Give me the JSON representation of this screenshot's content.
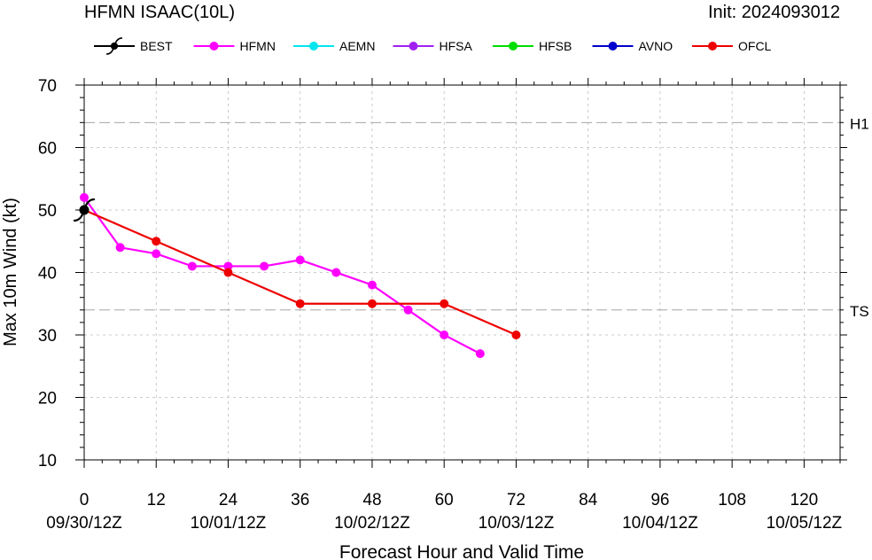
{
  "header": {
    "title": "HFMN ISAAC(10L)",
    "init": "Init: 2024093012"
  },
  "legend": [
    {
      "name": "BEST",
      "color": "#000000",
      "marker": "hurricane"
    },
    {
      "name": "HFMN",
      "color": "#ff00ff",
      "marker": "circle"
    },
    {
      "name": "AEMN",
      "color": "#00e5ee",
      "marker": "circle"
    },
    {
      "name": "HFSA",
      "color": "#a020f0",
      "marker": "circle"
    },
    {
      "name": "HFSB",
      "color": "#00dd00",
      "marker": "circle"
    },
    {
      "name": "AVNO",
      "color": "#0000cc",
      "marker": "circle"
    },
    {
      "name": "OFCL",
      "color": "#ee0000",
      "marker": "circle"
    }
  ],
  "chart_data": {
    "type": "line",
    "xlabel": "Forecast Hour and Valid Time",
    "ylabel": "Max 10m Wind (kt)",
    "xlim": [
      0,
      126
    ],
    "ylim": [
      10,
      70
    ],
    "x_ticks": [
      0,
      12,
      24,
      36,
      48,
      60,
      72,
      84,
      96,
      108,
      120
    ],
    "y_ticks": [
      10,
      20,
      30,
      40,
      50,
      60,
      70
    ],
    "valid_times": [
      {
        "hour": 0,
        "label": "09/30/12Z"
      },
      {
        "hour": 24,
        "label": "10/01/12Z"
      },
      {
        "hour": 48,
        "label": "10/02/12Z"
      },
      {
        "hour": 72,
        "label": "10/03/12Z"
      },
      {
        "hour": 96,
        "label": "10/04/12Z"
      },
      {
        "hour": 120,
        "label": "10/05/12Z"
      }
    ],
    "thresholds": [
      {
        "label": "H1",
        "value": 64
      },
      {
        "label": "TS",
        "value": 34
      }
    ],
    "grid": true,
    "legend_position": "top",
    "series": [
      {
        "name": "HFMN",
        "color": "#ff00ff",
        "x": [
          0,
          6,
          12,
          18,
          24,
          30,
          36,
          42,
          48,
          54,
          60,
          66
        ],
        "y": [
          52,
          44,
          43,
          41,
          41,
          41,
          42,
          40,
          38,
          34,
          30,
          27
        ]
      },
      {
        "name": "OFCL",
        "color": "#ee0000",
        "x": [
          0,
          12,
          24,
          36,
          48,
          60,
          72
        ],
        "y": [
          50,
          45,
          40,
          35,
          35,
          35,
          30
        ]
      },
      {
        "name": "BEST",
        "color": "#000000",
        "x": [
          0
        ],
        "y": [
          50
        ]
      }
    ]
  }
}
